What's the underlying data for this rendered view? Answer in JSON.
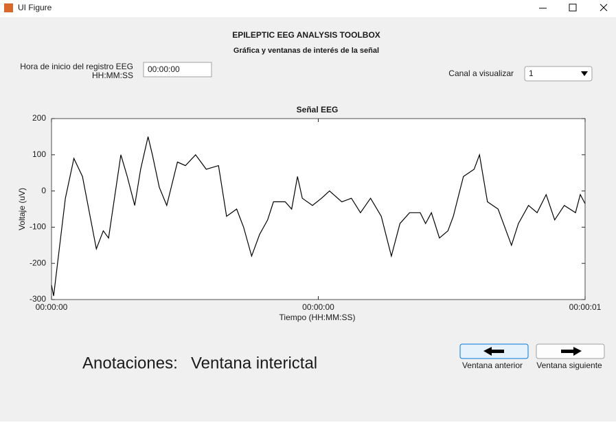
{
  "window": {
    "title": "UI Figure"
  },
  "header": {
    "title": "EPILEPTIC EEG ANALYSIS TOOLBOX",
    "subtitle": "Gráfica y ventanas de interés de la señal"
  },
  "start_time": {
    "label_lines": [
      "Hora de inicio del registro EEG",
      "HH:MM:SS"
    ],
    "value": "00:00:00"
  },
  "channel": {
    "label": "Canal a visualizar",
    "value": "1"
  },
  "chart_data": {
    "type": "line",
    "title": "Señal EEG",
    "x_label": "Tiempo (HH:MM:SS)",
    "y_label": "Voltaje (uV)",
    "color": "#000000",
    "x": [
      0,
      0.004,
      0.026,
      0.042,
      0.058,
      0.084,
      0.097,
      0.107,
      0.13,
      0.142,
      0.156,
      0.167,
      0.181,
      0.189,
      0.202,
      0.216,
      0.236,
      0.251,
      0.27,
      0.29,
      0.313,
      0.328,
      0.347,
      0.36,
      0.375,
      0.39,
      0.405,
      0.416,
      0.438,
      0.45,
      0.461,
      0.47,
      0.489,
      0.506,
      0.521,
      0.544,
      0.562,
      0.579,
      0.598,
      0.618,
      0.637,
      0.653,
      0.671,
      0.691,
      0.701,
      0.712,
      0.727,
      0.743,
      0.753,
      0.772,
      0.792,
      0.802,
      0.817,
      0.837,
      0.862,
      0.875,
      0.894,
      0.91,
      0.927,
      0.943,
      0.961,
      0.982,
      0.991,
      1
    ],
    "values": [
      -260,
      -290,
      -20,
      90,
      40,
      -160,
      -110,
      -130,
      100,
      40,
      -40,
      60,
      150,
      100,
      10,
      -40,
      80,
      70,
      100,
      60,
      70,
      -70,
      -50,
      -100,
      -180,
      -120,
      -80,
      -30,
      -30,
      -50,
      40,
      -20,
      -40,
      -20,
      0,
      -30,
      -20,
      -60,
      -20,
      -70,
      -180,
      -90,
      -60,
      -60,
      -90,
      -60,
      -130,
      -110,
      -70,
      40,
      60,
      100,
      -30,
      -50,
      -150,
      -90,
      -40,
      -60,
      -10,
      -80,
      -40,
      -60,
      -10,
      -35
    ],
    "xlim": [
      0,
      1
    ],
    "ylim": [
      -300,
      200
    ],
    "xticks": [
      {
        "value": 0,
        "label": "00:00:00"
      },
      {
        "value": 0.5,
        "label": "00:00:00"
      },
      {
        "value": 1,
        "label": "00:00:01"
      }
    ],
    "yticks": [
      -300,
      -200,
      -100,
      0,
      100,
      200
    ],
    "grid": false
  },
  "annotations": {
    "label": "Anotaciones:",
    "value": "Ventana interictal"
  },
  "buttons": [
    {
      "label": "Ventana anterior"
    },
    {
      "label": "Ventana siguiente"
    }
  ]
}
